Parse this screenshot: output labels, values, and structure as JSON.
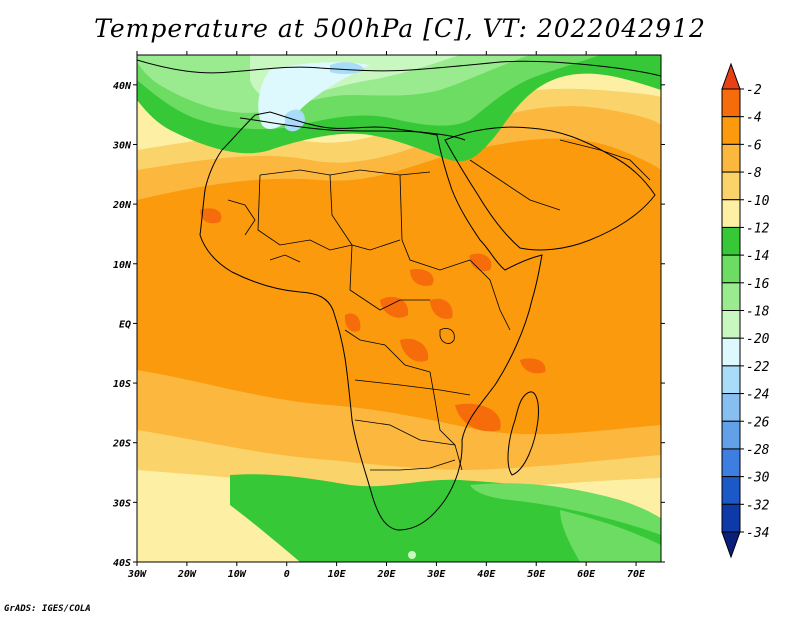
{
  "title": "Temperature at 500hPa [C], VT: 2022042912",
  "credit": "GrADS: IGES/COLA",
  "map": {
    "lon_labels": [
      "30W",
      "20W",
      "10W",
      "0",
      "10E",
      "20E",
      "30E",
      "40E",
      "50E",
      "60E",
      "70E"
    ],
    "lat_labels": [
      "40N",
      "30N",
      "20N",
      "10N",
      "EQ",
      "10S",
      "20S",
      "30S",
      "40S"
    ],
    "extent": {
      "lon": [
        -30,
        75
      ],
      "lat": [
        -40,
        45
      ]
    }
  },
  "colorbar": {
    "labels": [
      "-2",
      "-4",
      "-6",
      "-8",
      "-10",
      "-12",
      "-14",
      "-16",
      "-18",
      "-20",
      "-22",
      "-24",
      "-26",
      "-28",
      "-30",
      "-32",
      "-34"
    ],
    "colors": [
      "#e83f16",
      "#f66b0a",
      "#fa9a0c",
      "#fcb73e",
      "#fad36b",
      "#fdf0a5",
      "#37c837",
      "#6cdc62",
      "#9aeb90",
      "#c8f8c0",
      "#ddf9fe",
      "#a9dcf9",
      "#87bff0",
      "#62a1e8",
      "#3e7ee0",
      "#1c59c8",
      "#0e39a8",
      "#0a1f7a"
    ]
  },
  "colors": {
    "warm_orange": "#fa9a0c",
    "deep_orange": "#f66b0a",
    "light_orange": "#fcb73e",
    "yellow": "#fad36b",
    "pale_yellow": "#fdf0a5",
    "green": "#37c837",
    "mid_green": "#6cdc62",
    "light_green": "#9aeb90",
    "pale_green": "#c8f8c0",
    "pale_blue": "#ddf9fe",
    "light_blue": "#a9dcf9"
  }
}
